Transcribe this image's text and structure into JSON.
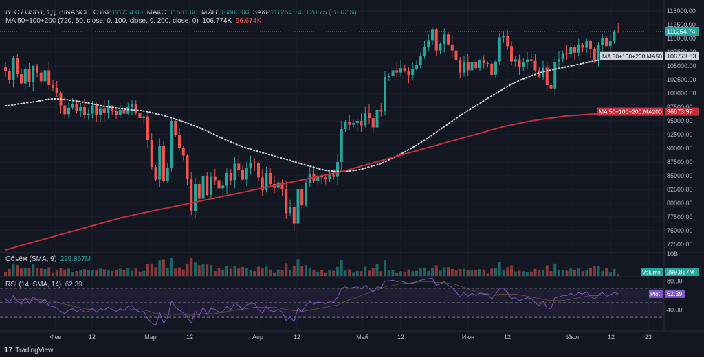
{
  "header": {
    "symbol": "BTC / USDT, 1Д, BINANCE",
    "open_label": "ОТКР",
    "open": "111234.00",
    "high_label": "МАКС",
    "high": "111581.00",
    "low_label": "МИН",
    "low": "110880.00",
    "close_label": "ЗАКР",
    "close": "111254.74",
    "change": "+20.75 (+0.02%)",
    "ma_label": "MA 50+100+200 (720, 50, close, 0, 100, close, 0, 200, close, 0)",
    "ma_value_1": "106.774K",
    "ma_value_2": "96.674K",
    "volume_label": "Объём (SMA, 9)",
    "volume_value": "299.867M",
    "rsi_label": "RSI (14, SMA, 14)",
    "rsi_value": "62.39"
  },
  "brand": {
    "name": "TradingView"
  },
  "colors": {
    "up": "#26a69a",
    "down": "#ef5350",
    "ma50": "#d1d4dc",
    "ma200": "#c62f3e",
    "rsi": "#7e57c2",
    "bg": "#131722"
  },
  "chart_data": {
    "type": "candlestick",
    "y_ticks": [
      "115000.00",
      "112500.00",
      "110000.00",
      "107500.00",
      "105000.00",
      "102500.00",
      "100000.00",
      "97500.00",
      "95000.00",
      "92500.00",
      "90000.00",
      "87500.00",
      "85000.00",
      "82500.00",
      "80000.00",
      "77500.00",
      "75000.00",
      "72500.00"
    ],
    "y_range": [
      71000,
      116000
    ],
    "x_labels": [
      "Фев",
      "12",
      "Мар",
      "12",
      "Апр",
      "12",
      "Май",
      "12",
      "Июн",
      "12",
      "Июл",
      "12",
      "23"
    ],
    "price_labels": [
      {
        "text": "111254.74",
        "value": 111254.74,
        "kind": "close"
      },
      {
        "text": "MA 50+100+200:MA50",
        "value": 106773.83,
        "kind": "ma50"
      },
      {
        "text": "106773.83",
        "value": 106773.83,
        "kind": "ma50v"
      },
      {
        "text": "MA 50+100+200:MA200",
        "value": 96673.97,
        "kind": "ma200"
      },
      {
        "text": "96673.97",
        "value": 96673.97,
        "kind": "ma200v"
      }
    ],
    "closes": [
      104000,
      102500,
      106500,
      103500,
      101800,
      104500,
      102000,
      105000,
      103800,
      102200,
      104200,
      101500,
      101000,
      100000,
      97800,
      96200,
      97400,
      98000,
      96800,
      97500,
      96000,
      96300,
      97800,
      96100,
      97200,
      96500,
      97600,
      96800,
      96100,
      97000,
      96300,
      97500,
      98000,
      96500,
      95500,
      95800,
      91500,
      86600,
      84300,
      90500,
      84000,
      86400,
      95000,
      92500,
      90100,
      88700,
      84500,
      78500,
      83500,
      80800,
      85000,
      81500,
      84800,
      84200,
      82700,
      83200,
      85500,
      84200,
      87200,
      86000,
      84300,
      86500,
      87400,
      87300,
      84700,
      82400,
      85500,
      83500,
      82800,
      83800,
      82600,
      78200,
      79300,
      76300,
      82600,
      79600,
      83700,
      85300,
      84000,
      85000,
      84700,
      84400,
      85200,
      84800,
      87500,
      93500,
      94800,
      94300,
      94600,
      95000,
      94200,
      96500,
      95500,
      93800,
      97000,
      96700,
      103000,
      103200,
      104200,
      103800,
      104600,
      104100,
      103400,
      104500,
      105100,
      106800,
      108500,
      109700,
      111700,
      107800,
      109000,
      110700,
      108900,
      107800,
      106000,
      103800,
      105700,
      104200,
      105700,
      104600,
      106000,
      105500,
      105400,
      103400,
      105800,
      110200,
      110500,
      108600,
      105800,
      106200,
      104800,
      105600,
      106200,
      105900,
      104200,
      103000,
      104700,
      101500,
      100900,
      105700,
      106200,
      107300,
      107200,
      108400,
      107400,
      108900,
      108300,
      109600,
      108000,
      106000,
      108800,
      110000,
      108600,
      109500,
      111300,
      111254.74
    ],
    "ma50": [
      97750,
      97800,
      97900,
      98050,
      98150,
      98250,
      98350,
      98450,
      98550,
      98700,
      98850,
      98950,
      99000,
      99000,
      98950,
      98900,
      98800,
      98700,
      98600,
      98500,
      98350,
      98250,
      98100,
      97950,
      97800,
      97650,
      97550,
      97450,
      97350,
      97250,
      97150,
      97050,
      97000,
      96950,
      96900,
      96800,
      96650,
      96500,
      96300,
      96150,
      96000,
      95750,
      95550,
      95300,
      95100,
      94850,
      94600,
      94300,
      94050,
      93750,
      93450,
      93150,
      92800,
      92450,
      92100,
      91800,
      91450,
      91150,
      90850,
      90550,
      90300,
      90050,
      89850,
      89600,
      89400,
      89200,
      89000,
      88800,
      88600,
      88400,
      88200,
      88000,
      87800,
      87550,
      87350,
      87150,
      86950,
      86750,
      86550,
      86350,
      86150,
      86000,
      85900,
      85850,
      85800,
      85800,
      85800,
      85850,
      85950,
      86050,
      86200,
      86400,
      86600,
      86800,
      87000,
      87250,
      87550,
      87900,
      88250,
      88600,
      88950,
      89350,
      89750,
      90150,
      90550,
      91000,
      91450,
      91950,
      92450,
      92950,
      93450,
      93950,
      94450,
      94950,
      95450,
      95950,
      96400,
      96850,
      97300,
      97750,
      98200,
      98650,
      99100,
      99500,
      99950,
      100400,
      100850,
      101300,
      101650,
      102000,
      102350,
      102650,
      102950,
      103200,
      103450,
      103700,
      103900,
      104100,
      104250,
      104400,
      104550,
      104700,
      104850,
      105000,
      105150,
      105300,
      105450,
      105600,
      105750,
      105900,
      106050,
      106200,
      106350,
      106450,
      106550,
      106650,
      106774
    ],
    "ma200": [
      71500,
      71700,
      71900,
      72100,
      72300,
      72500,
      72700,
      72900,
      73100,
      73300,
      73500,
      73700,
      73900,
      74100,
      74300,
      74500,
      74700,
      74900,
      75100,
      75300,
      75500,
      75700,
      75900,
      76100,
      76300,
      76500,
      76700,
      76900,
      77100,
      77300,
      77500,
      77650,
      77800,
      77950,
      78100,
      78250,
      78400,
      78550,
      78700,
      78850,
      79000,
      79150,
      79300,
      79450,
      79600,
      79750,
      79900,
      80050,
      80200,
      80350,
      80500,
      80650,
      80800,
      80950,
      81100,
      81250,
      81400,
      81550,
      81700,
      81850,
      82000,
      82150,
      82300,
      82450,
      82600,
      82750,
      82900,
      83050,
      83200,
      83350,
      83500,
      83650,
      83800,
      83950,
      84100,
      84250,
      84400,
      84550,
      84700,
      84850,
      85000,
      85150,
      85300,
      85450,
      85600,
      85750,
      85950,
      86150,
      86350,
      86550,
      86750,
      86950,
      87150,
      87350,
      87550,
      87750,
      87950,
      88150,
      88350,
      88550,
      88750,
      88950,
      89150,
      89350,
      89550,
      89750,
      89950,
      90150,
      90350,
      90550,
      90750,
      90950,
      91150,
      91350,
      91550,
      91750,
      91950,
      92150,
      92350,
      92550,
      92750,
      92950,
      93150,
      93350,
      93550,
      93750,
      93950,
      94100,
      94250,
      94400,
      94550,
      94700,
      94850,
      95000,
      95100,
      95200,
      95300,
      95400,
      95500,
      95600,
      95700,
      95800,
      95900,
      95950,
      96000,
      96050,
      96100,
      96150,
      96200,
      96250,
      96300,
      96350,
      96400,
      96450,
      96500,
      96550,
      96600,
      96674
    ],
    "volume_scale": "10B",
    "rsi_ticks": [
      "80.00",
      "40.00"
    ],
    "rsi_levels": [
      70,
      50,
      30
    ],
    "rsi_range": [
      15,
      85
    ],
    "rsi_values": [
      55,
      50,
      60,
      52,
      48,
      57,
      49,
      58,
      54,
      50,
      55,
      46,
      45,
      43,
      38,
      35,
      40,
      42,
      38,
      41,
      37,
      38,
      43,
      37,
      42,
      40,
      44,
      41,
      38,
      42,
      39,
      45,
      46,
      40,
      37,
      38,
      28,
      22,
      19,
      36,
      22,
      30,
      52,
      44,
      40,
      36,
      30,
      22,
      38,
      32,
      44,
      34,
      42,
      41,
      37,
      38,
      45,
      41,
      50,
      46,
      41,
      47,
      49,
      49,
      41,
      36,
      45,
      39,
      38,
      41,
      37,
      26,
      31,
      24,
      43,
      37,
      47,
      52,
      48,
      51,
      50,
      49,
      52,
      50,
      58,
      70,
      72,
      70,
      71,
      72,
      69,
      74,
      70,
      65,
      72,
      71,
      80,
      80,
      81,
      79,
      80,
      78,
      76,
      77,
      79,
      81,
      82,
      83,
      84,
      74,
      76,
      79,
      74,
      71,
      65,
      58,
      64,
      59,
      63,
      60,
      63,
      62,
      62,
      55,
      62,
      70,
      70,
      64,
      56,
      57,
      53,
      55,
      57,
      56,
      50,
      46,
      52,
      43,
      42,
      57,
      58,
      60,
      60,
      63,
      60,
      64,
      62,
      65,
      59,
      55,
      61,
      64,
      59,
      61,
      64,
      62.39
    ],
    "rsi_sma": [
      55,
      55,
      55,
      54,
      54,
      54,
      54,
      54,
      54,
      54,
      53,
      52,
      52,
      51,
      49,
      48,
      47,
      46,
      44,
      43,
      42,
      41,
      41,
      40,
      40,
      40,
      40,
      40,
      40,
      40,
      40,
      40,
      41,
      41,
      40,
      40,
      39,
      37,
      35,
      35,
      34,
      33,
      34,
      34,
      34,
      34,
      33,
      33,
      34,
      34,
      35,
      35,
      35,
      35,
      36,
      36,
      38,
      39,
      40,
      41,
      41,
      42,
      43,
      44,
      44,
      44,
      44,
      44,
      44,
      43,
      42,
      41,
      40,
      39,
      39,
      38,
      39,
      40,
      41,
      42,
      43,
      44,
      45,
      46,
      47,
      50,
      52,
      54,
      56,
      58,
      60,
      62,
      64,
      66,
      68,
      70,
      72,
      73,
      74,
      75,
      76,
      77,
      77,
      78,
      78,
      79,
      79,
      79,
      79,
      78,
      78,
      78,
      77,
      76,
      75,
      73,
      71,
      69,
      67,
      65,
      64,
      63,
      62,
      61,
      61,
      62,
      62,
      62,
      62,
      62,
      61,
      60,
      59,
      58,
      57,
      56,
      55,
      54,
      53,
      53,
      53,
      53,
      54,
      55,
      56,
      57,
      58,
      59,
      60,
      60,
      60,
      61,
      61,
      61,
      61,
      62
    ]
  }
}
